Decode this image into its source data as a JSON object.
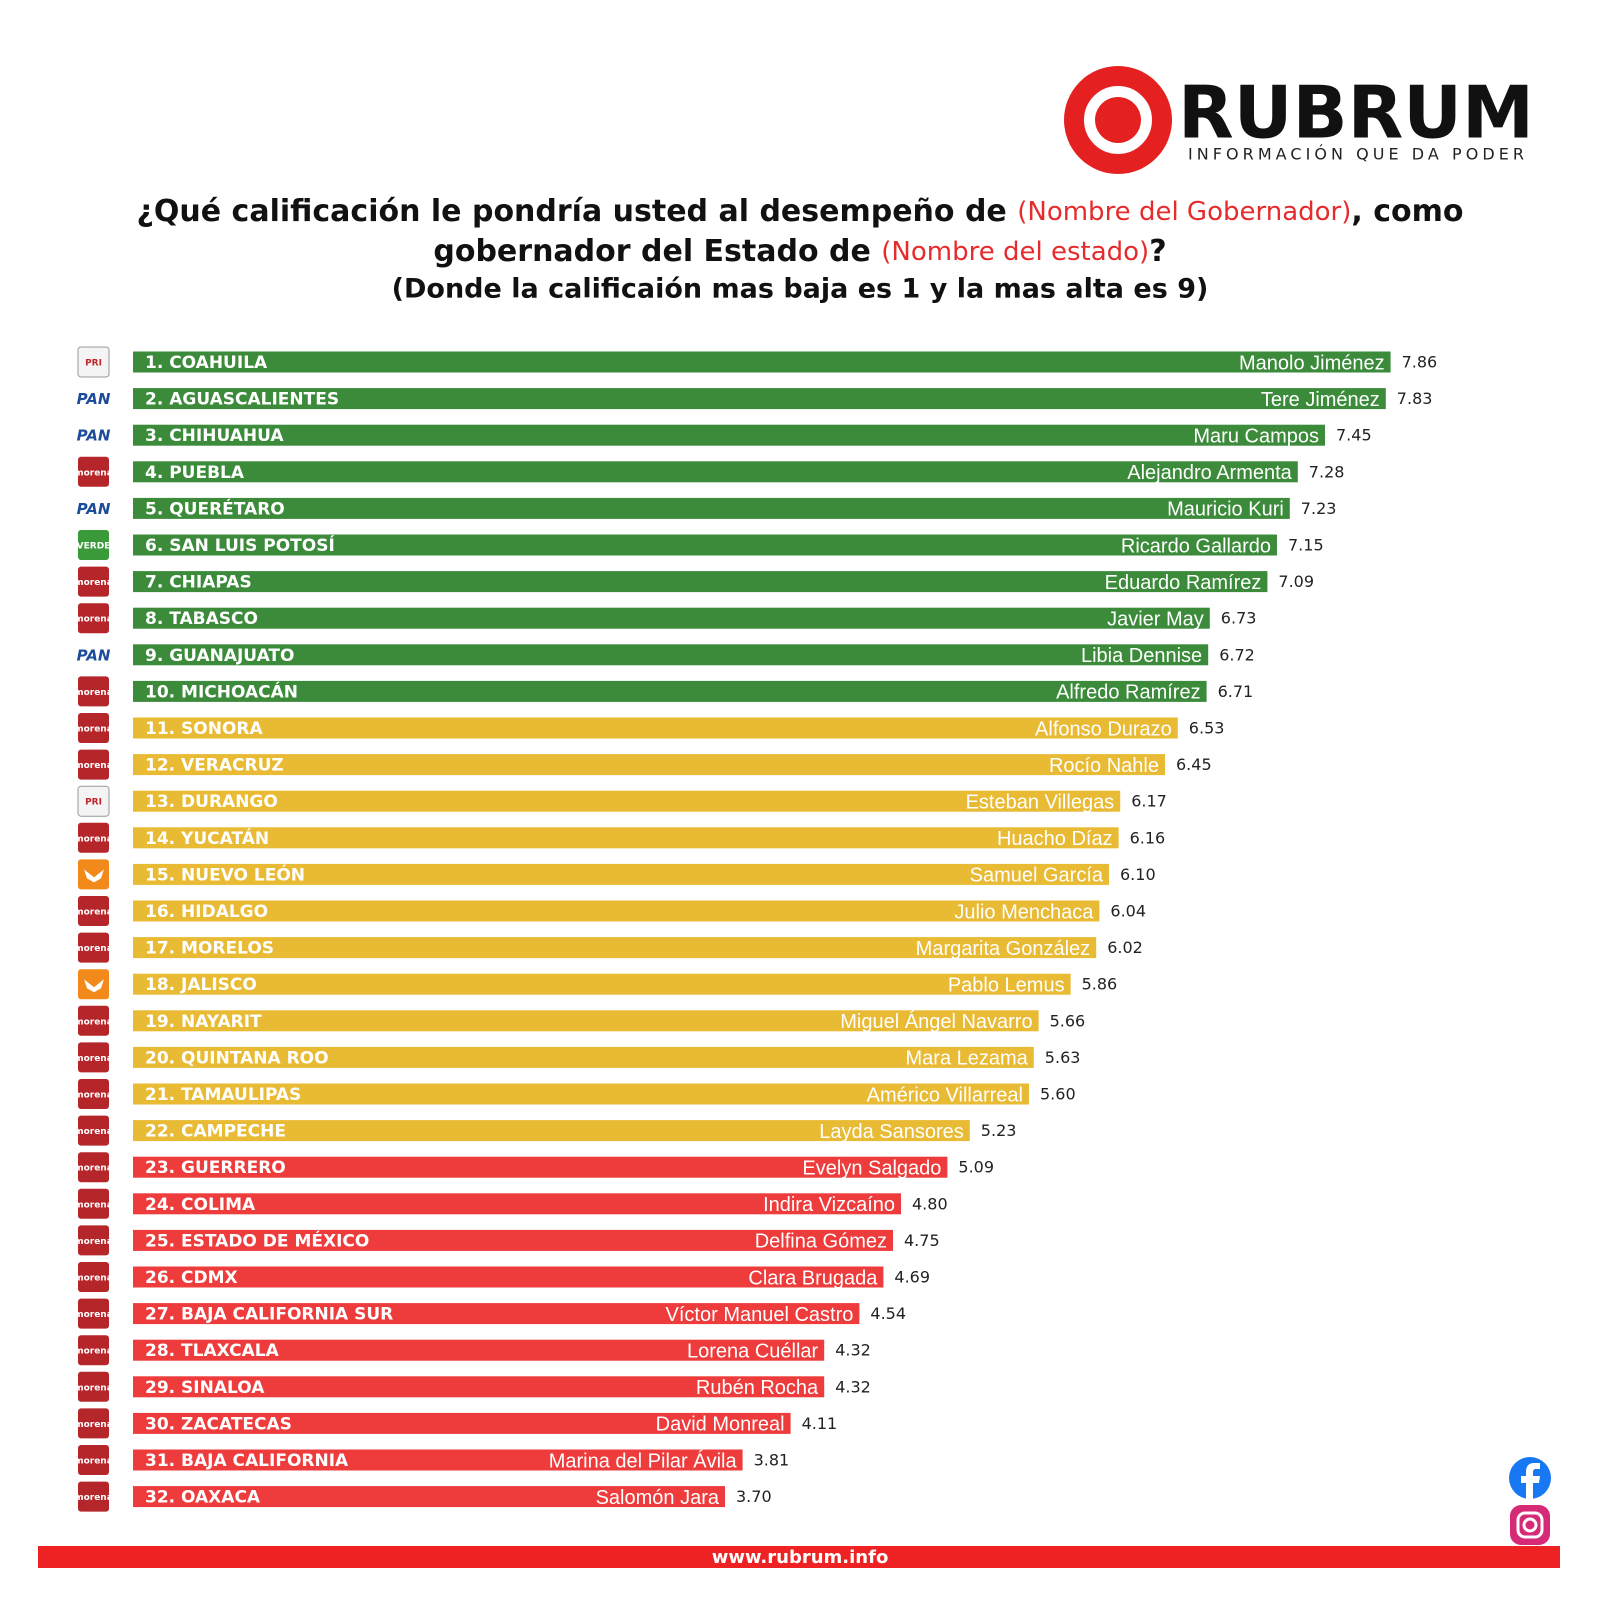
{
  "header": {
    "logo": "RUBRUM",
    "tagline": "INFORMACIÓN QUE DA PODER"
  },
  "footer": {
    "url": "www.rubrum.info"
  },
  "chart_data": {
    "type": "bar",
    "title": [
      [
        {
          "text": "¿Qué calificación le pondría usted al desempeño de ",
          "color": "#111111"
        },
        {
          "text": "(Nombre del Gobernador)",
          "color": "#e52b2b"
        },
        {
          "text": ", como",
          "color": "#111111"
        }
      ],
      [
        {
          "text": "gobernador del Estado de ",
          "color": "#111111"
        },
        {
          "text": "(Nombre del estado)",
          "color": "#e52b2b"
        },
        {
          "text": "?",
          "color": "#111111"
        }
      ]
    ],
    "subtitle": "(Donde la calificaión mas baja es 1 y la mas alta es 9)",
    "categories": [
      "1. COAHUILA",
      "2. AGUASCALIENTES",
      "3. CHIHUAHUA",
      "4. PUEBLA",
      "5. QUERÉTARO",
      "6. SAN LUIS POTOSÍ",
      "7. CHIAPAS",
      "8. TABASCO",
      "9. GUANAJUATO",
      "10. MICHOACÁN",
      "11. SONORA",
      "12. VERACRUZ",
      "13. DURANGO",
      "14. YUCATÁN",
      "15. NUEVO LEÓN",
      "16. HIDALGO",
      "17. MORELOS",
      "18. JALISCO",
      "19. NAYARIT",
      "20. QUINTANA ROO",
      "21. TAMAULIPAS",
      "22. CAMPECHE",
      "23. GUERRERO",
      "24. COLIMA",
      "25. ESTADO DE MÉXICO",
      "26. CDMX",
      "27. BAJA CALIFORNIA SUR",
      "28. TLAXCALA",
      "29. SINALOA",
      "30. ZACATECAS",
      "31. BAJA CALIFORNIA",
      "32. OAXACA"
    ],
    "governors": [
      "Manolo Jiménez",
      "Tere Jiménez",
      "Maru Campos",
      "Alejandro Armenta",
      "Mauricio Kuri",
      "Ricardo Gallardo",
      "Eduardo Ramírez",
      "Javier May",
      "Libia Dennise",
      "Alfredo Ramírez",
      "Alfonso Durazo",
      "Rocío Nahle",
      "Esteban Villegas",
      "Huacho Díaz",
      "Samuel García",
      "Julio Menchaca",
      "Margarita González",
      "Pablo Lemus",
      "Miguel Ángel Navarro",
      "Mara Lezama",
      "Américo Villarreal",
      "Layda Sansores",
      "Evelyn Salgado",
      "Indira Vizcaíno",
      "Delfina Gómez",
      "Clara Brugada",
      "Víctor Manuel Castro",
      "Lorena Cuéllar",
      "Rubén Rocha",
      "David Monreal",
      "Marina del Pilar Ávila",
      "Salomón Jara"
    ],
    "parties": [
      "PRI",
      "PAN",
      "PAN",
      "morena",
      "PAN",
      "VERDE",
      "morena",
      "morena",
      "PAN",
      "morena",
      "morena",
      "morena",
      "PRI",
      "morena",
      null,
      "morena",
      "morena",
      null,
      "morena",
      "morena",
      "morena",
      "morena",
      "morena",
      "morena",
      "morena",
      "morena",
      "morena",
      "morena",
      "morena",
      "morena",
      "morena",
      "morena"
    ],
    "values": [
      7.86,
      7.83,
      7.45,
      7.28,
      7.23,
      7.15,
      7.09,
      6.73,
      6.72,
      6.71,
      6.53,
      6.45,
      6.17,
      6.16,
      6.1,
      6.04,
      6.02,
      5.86,
      5.66,
      5.63,
      5.6,
      5.23,
      5.09,
      4.8,
      4.75,
      4.69,
      4.54,
      4.32,
      4.32,
      4.11,
      3.81,
      3.7
    ],
    "value_labels": [
      "7.86",
      "7.83",
      "7.45",
      "7.28",
      "7.23",
      "7.15",
      "7.09",
      "6.73",
      "6.72",
      "6.71",
      "6.53",
      "6.45",
      "6.17",
      "6.16",
      "6.10",
      "6.04",
      "6.02",
      "5.86",
      "5.66",
      "5.63",
      "5.60",
      "5.23",
      "5.09",
      "4.80",
      "4.75",
      "4.69",
      "4.54",
      "4.32",
      "4.32",
      "4.11",
      "3.81",
      "3.70"
    ],
    "colors": [
      "#3b8b3b",
      "#3b8b3b",
      "#3b8b3b",
      "#3b8b3b",
      "#3b8b3b",
      "#3b8b3b",
      "#3b8b3b",
      "#3b8b3b",
      "#3b8b3b",
      "#3b8b3b",
      "#e9ba33",
      "#e9ba33",
      "#e9ba33",
      "#e9ba33",
      "#e9ba33",
      "#e9ba33",
      "#e9ba33",
      "#e9ba33",
      "#e9ba33",
      "#e9ba33",
      "#e9ba33",
      "#e9ba33",
      "#ee3b3b",
      "#ee3b3b",
      "#ee3b3b",
      "#ee3b3b",
      "#ee3b3b",
      "#ee3b3b",
      "#ee3b3b",
      "#ee3b3b",
      "#ee3b3b",
      "#ee3b3b"
    ]
  }
}
